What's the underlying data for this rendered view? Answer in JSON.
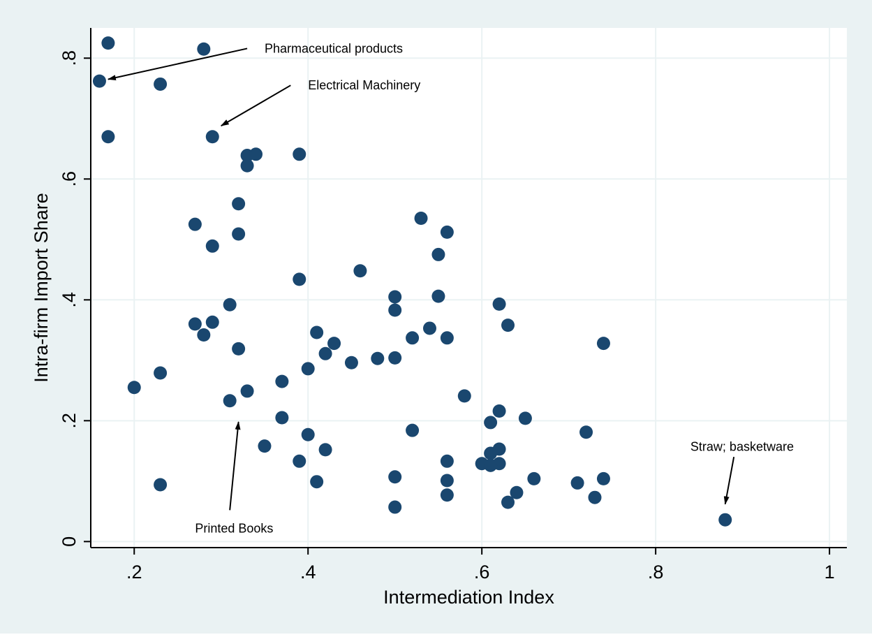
{
  "chart_data": {
    "type": "scatter",
    "title": "",
    "xlabel": "Intermediation Index",
    "ylabel": "Intra-firm Import Share",
    "xlim": [
      0.15,
      1.02
    ],
    "ylim": [
      -0.01,
      0.85
    ],
    "xticks": [
      0.2,
      0.4,
      0.6,
      0.8,
      1.0
    ],
    "xtick_labels": [
      ".2",
      ".4",
      ".6",
      ".8",
      "1"
    ],
    "yticks": [
      0,
      0.2,
      0.4,
      0.6,
      0.8
    ],
    "ytick_labels": [
      "0",
      ".2",
      ".4",
      ".6",
      ".8"
    ],
    "grid": true,
    "colors": {
      "outer_bg": "#eaf2f3",
      "plot_bg": "#ffffff",
      "marker": "#1a476f",
      "grid": "#eaf2f3",
      "text": "#000000"
    },
    "points": [
      {
        "x": 0.17,
        "y": 0.825
      },
      {
        "x": 0.28,
        "y": 0.815
      },
      {
        "x": 0.16,
        "y": 0.762
      },
      {
        "x": 0.23,
        "y": 0.757
      },
      {
        "x": 0.17,
        "y": 0.67
      },
      {
        "x": 0.29,
        "y": 0.67
      },
      {
        "x": 0.33,
        "y": 0.639
      },
      {
        "x": 0.34,
        "y": 0.641
      },
      {
        "x": 0.39,
        "y": 0.641
      },
      {
        "x": 0.33,
        "y": 0.622
      },
      {
        "x": 0.32,
        "y": 0.559
      },
      {
        "x": 0.27,
        "y": 0.525
      },
      {
        "x": 0.32,
        "y": 0.509
      },
      {
        "x": 0.29,
        "y": 0.489
      },
      {
        "x": 0.53,
        "y": 0.535
      },
      {
        "x": 0.56,
        "y": 0.512
      },
      {
        "x": 0.55,
        "y": 0.475
      },
      {
        "x": 0.46,
        "y": 0.448
      },
      {
        "x": 0.39,
        "y": 0.434
      },
      {
        "x": 0.5,
        "y": 0.405
      },
      {
        "x": 0.55,
        "y": 0.406
      },
      {
        "x": 0.62,
        "y": 0.393
      },
      {
        "x": 0.31,
        "y": 0.392
      },
      {
        "x": 0.5,
        "y": 0.383
      },
      {
        "x": 0.27,
        "y": 0.36
      },
      {
        "x": 0.29,
        "y": 0.363
      },
      {
        "x": 0.63,
        "y": 0.358
      },
      {
        "x": 0.54,
        "y": 0.353
      },
      {
        "x": 0.41,
        "y": 0.346
      },
      {
        "x": 0.28,
        "y": 0.342
      },
      {
        "x": 0.52,
        "y": 0.337
      },
      {
        "x": 0.56,
        "y": 0.337
      },
      {
        "x": 0.43,
        "y": 0.328
      },
      {
        "x": 0.74,
        "y": 0.328
      },
      {
        "x": 0.32,
        "y": 0.319
      },
      {
        "x": 0.42,
        "y": 0.311
      },
      {
        "x": 0.5,
        "y": 0.304
      },
      {
        "x": 0.48,
        "y": 0.303
      },
      {
        "x": 0.45,
        "y": 0.296
      },
      {
        "x": 0.4,
        "y": 0.286
      },
      {
        "x": 0.23,
        "y": 0.279
      },
      {
        "x": 0.37,
        "y": 0.265
      },
      {
        "x": 0.2,
        "y": 0.255
      },
      {
        "x": 0.33,
        "y": 0.249
      },
      {
        "x": 0.58,
        "y": 0.241
      },
      {
        "x": 0.31,
        "y": 0.233
      },
      {
        "x": 0.62,
        "y": 0.216
      },
      {
        "x": 0.37,
        "y": 0.205
      },
      {
        "x": 0.65,
        "y": 0.204
      },
      {
        "x": 0.61,
        "y": 0.197
      },
      {
        "x": 0.52,
        "y": 0.184
      },
      {
        "x": 0.72,
        "y": 0.181
      },
      {
        "x": 0.4,
        "y": 0.177
      },
      {
        "x": 0.35,
        "y": 0.158
      },
      {
        "x": 0.62,
        "y": 0.153
      },
      {
        "x": 0.42,
        "y": 0.152
      },
      {
        "x": 0.61,
        "y": 0.146
      },
      {
        "x": 0.39,
        "y": 0.133
      },
      {
        "x": 0.56,
        "y": 0.133
      },
      {
        "x": 0.6,
        "y": 0.129
      },
      {
        "x": 0.62,
        "y": 0.129
      },
      {
        "x": 0.61,
        "y": 0.126
      },
      {
        "x": 0.5,
        "y": 0.107
      },
      {
        "x": 0.66,
        "y": 0.104
      },
      {
        "x": 0.74,
        "y": 0.104
      },
      {
        "x": 0.56,
        "y": 0.101
      },
      {
        "x": 0.41,
        "y": 0.099
      },
      {
        "x": 0.71,
        "y": 0.097
      },
      {
        "x": 0.23,
        "y": 0.094
      },
      {
        "x": 0.64,
        "y": 0.081
      },
      {
        "x": 0.56,
        "y": 0.077
      },
      {
        "x": 0.73,
        "y": 0.073
      },
      {
        "x": 0.63,
        "y": 0.065
      },
      {
        "x": 0.5,
        "y": 0.057
      },
      {
        "x": 0.88,
        "y": 0.036
      }
    ],
    "annotations": [
      {
        "text": "Pharmaceutical products",
        "text_at": [
          0.35,
          0.816
        ],
        "arrow_from": [
          0.33,
          0.816
        ],
        "arrow_to": [
          0.17,
          0.765
        ],
        "anchor": "start"
      },
      {
        "text": "Electrical Machinery",
        "text_at": [
          0.4,
          0.755
        ],
        "arrow_from": [
          0.38,
          0.755
        ],
        "arrow_to": [
          0.3,
          0.688
        ],
        "anchor": "start"
      },
      {
        "text": "Printed Books",
        "text_at": [
          0.27,
          0.022
        ],
        "arrow_from": [
          0.31,
          0.052
        ],
        "arrow_to": [
          0.32,
          0.198
        ],
        "anchor": "start"
      },
      {
        "text": "Straw; basketware",
        "text_at": [
          0.84,
          0.157
        ],
        "arrow_from": [
          0.89,
          0.14
        ],
        "arrow_to": [
          0.88,
          0.062
        ],
        "anchor": "start"
      }
    ]
  }
}
